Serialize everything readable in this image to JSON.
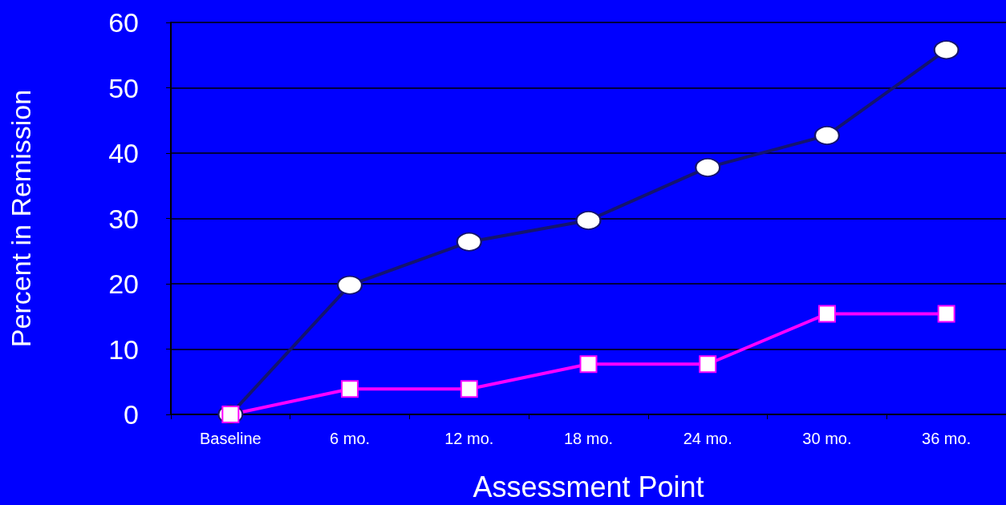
{
  "chart_data": {
    "type": "line",
    "xlabel": "Assessment Point",
    "ylabel": "Percent in Remission",
    "categories": [
      "Baseline",
      "6 mo.",
      "12 mo.",
      "18 mo.",
      "24 mo.",
      "30 mo.",
      "36 mo."
    ],
    "series": [
      {
        "color": "#14146e",
        "marker": "circle",
        "values": [
          0,
          19.8,
          26.4,
          29.7,
          37.8,
          42.7,
          55.8
        ]
      },
      {
        "color": "#ff00ff",
        "marker": "square",
        "values": [
          0,
          3.9,
          3.9,
          7.7,
          7.7,
          15.4,
          15.4
        ]
      }
    ],
    "ylim": [
      0,
      60
    ],
    "yticks": [
      0,
      10,
      20,
      30,
      40,
      50,
      60
    ],
    "grid": "y",
    "line_style": "solid"
  }
}
